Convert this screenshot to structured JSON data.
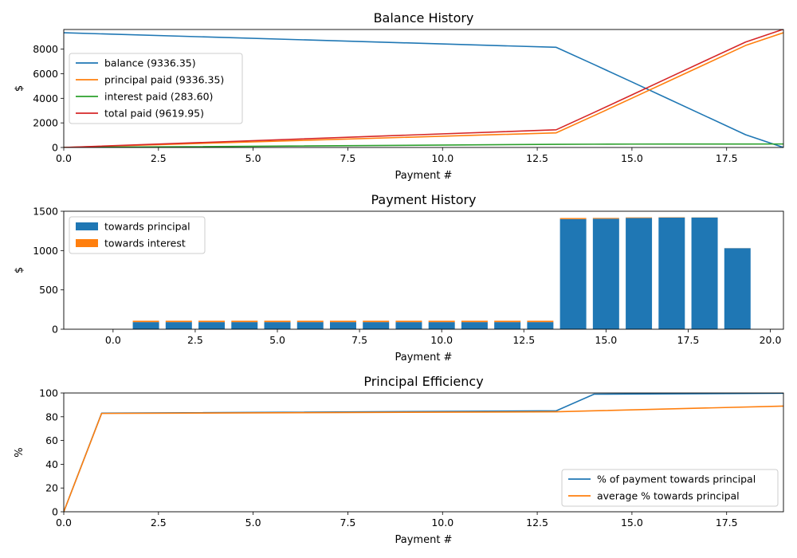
{
  "chart_data": [
    {
      "type": "line",
      "title": "Balance History",
      "xlabel": "Payment #",
      "ylabel": "$",
      "xlim": [
        0,
        19
      ],
      "ylim": [
        0,
        9600
      ],
      "xticks": [
        0,
        2.5,
        5,
        7.5,
        10,
        12.5,
        15,
        17.5
      ],
      "xtick_labels": [
        "0.0",
        "2.5",
        "5.0",
        "7.5",
        "10.0",
        "12.5",
        "15.0",
        "17.5"
      ],
      "yticks": [
        0,
        2000,
        4000,
        6000,
        8000
      ],
      "ytick_labels": [
        "0",
        "2000",
        "4000",
        "6000",
        "8000"
      ],
      "legend": "upper-left",
      "x": [
        0,
        13,
        14,
        15,
        16,
        17,
        18,
        19
      ],
      "series": [
        {
          "name": "balance (9336.35)",
          "color": "#1f77b4",
          "values": [
            9336,
            8150,
            6750,
            5330,
            3900,
            2470,
            1040,
            0
          ]
        },
        {
          "name": "principal paid (9336.35)",
          "color": "#ff7f0e",
          "values": [
            0,
            1190,
            2590,
            4010,
            5440,
            6870,
            8300,
            9336
          ]
        },
        {
          "name": "interest paid (283.60)",
          "color": "#2ca02c",
          "values": [
            0,
            255,
            268,
            275,
            280,
            282,
            283,
            284
          ]
        },
        {
          "name": "total paid (9619.95)",
          "color": "#d62728",
          "values": [
            0,
            1440,
            2850,
            4280,
            5720,
            7150,
            8580,
            9620
          ]
        }
      ]
    },
    {
      "type": "bar",
      "title": "Payment History",
      "xlabel": "Payment #",
      "ylabel": "$",
      "xlim": [
        -1.5,
        20.4
      ],
      "ylim": [
        0,
        1500
      ],
      "xticks": [
        0,
        2.5,
        5,
        7.5,
        10,
        12.5,
        15,
        17.5,
        20
      ],
      "xtick_labels": [
        "0.0",
        "2.5",
        "5.0",
        "7.5",
        "10.0",
        "12.5",
        "15.0",
        "17.5",
        "20.0"
      ],
      "yticks": [
        0,
        500,
        1000,
        1500
      ],
      "ytick_labels": [
        "0",
        "500",
        "1000",
        "1500"
      ],
      "legend": "upper-left",
      "categories": [
        1,
        2,
        3,
        4,
        5,
        6,
        7,
        8,
        9,
        10,
        11,
        12,
        13,
        14,
        15,
        16,
        17,
        18,
        19
      ],
      "series": [
        {
          "name": "towards principal",
          "color": "#1f77b4",
          "values": [
            90,
            90,
            90,
            90,
            90,
            90,
            90,
            90,
            90,
            90,
            90,
            90,
            90,
            1400,
            1405,
            1415,
            1420,
            1420,
            1030
          ]
        },
        {
          "name": "towards interest",
          "color": "#ff7f0e",
          "values": [
            18,
            18,
            18,
            18,
            18,
            18,
            18,
            18,
            18,
            18,
            18,
            18,
            18,
            14,
            10,
            7,
            4,
            2,
            1
          ]
        }
      ]
    },
    {
      "type": "line",
      "title": "Principal Efficiency",
      "xlabel": "Payment #",
      "ylabel": "%",
      "xlim": [
        0,
        19
      ],
      "ylim": [
        0,
        100
      ],
      "xticks": [
        0,
        2.5,
        5,
        7.5,
        10,
        12.5,
        15,
        17.5
      ],
      "xtick_labels": [
        "0.0",
        "2.5",
        "5.0",
        "7.5",
        "10.0",
        "12.5",
        "15.0",
        "17.5"
      ],
      "yticks": [
        0,
        20,
        40,
        60,
        80,
        100
      ],
      "ytick_labels": [
        "0",
        "20",
        "40",
        "60",
        "80",
        "100"
      ],
      "legend": "lower-right",
      "x": [
        0,
        1,
        13,
        14,
        19
      ],
      "series": [
        {
          "name": "% of payment towards principal",
          "color": "#1f77b4",
          "values": [
            0,
            83,
            85,
            99,
            99.8
          ]
        },
        {
          "name": "average % towards principal",
          "color": "#ff7f0e",
          "values": [
            0,
            82.8,
            84.2,
            85,
            89
          ]
        }
      ]
    }
  ]
}
